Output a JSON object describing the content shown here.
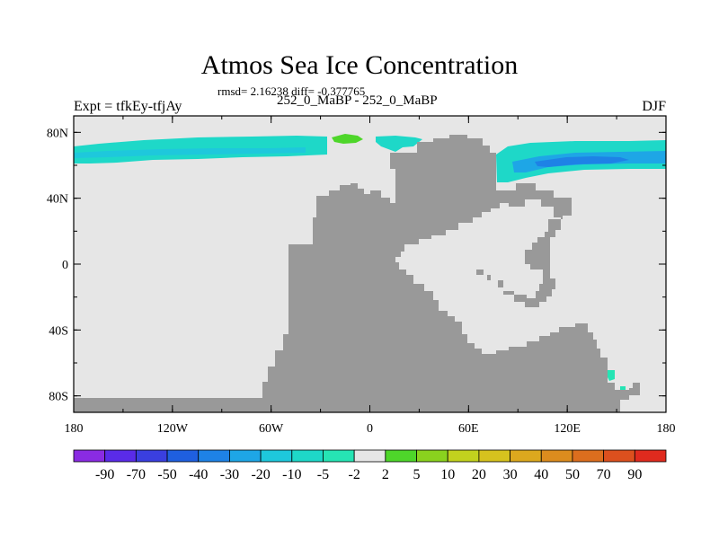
{
  "title": "Atmos Sea Ice Concentration",
  "stats": "rmsd= 2.16238 diff= -0.377765",
  "left_label": "Expt = tfkEy-tfjAy",
  "center_label": "252_0_MaBP - 252_0_MaBP",
  "right_label": "DJF",
  "map": {
    "ocean_color": "#e6e6e6",
    "land_color": "#999999",
    "lon_range": [
      -180,
      180
    ],
    "lat_range": [
      -90,
      90
    ],
    "lat_ticks": [
      {
        "value": 80,
        "label": "80N"
      },
      {
        "value": 40,
        "label": "40N"
      },
      {
        "value": 0,
        "label": "0"
      },
      {
        "value": -40,
        "label": "40S"
      },
      {
        "value": -80,
        "label": "80S"
      }
    ],
    "lon_ticks": [
      {
        "value": -180,
        "label": "180"
      },
      {
        "value": -120,
        "label": "120W"
      },
      {
        "value": -60,
        "label": "60W"
      },
      {
        "value": 0,
        "label": "0"
      },
      {
        "value": 60,
        "label": "60E"
      },
      {
        "value": 120,
        "label": "120E"
      },
      {
        "value": 180,
        "label": "180"
      }
    ]
  },
  "colorbar": {
    "colors": [
      "#8a2be2",
      "#5a2be8",
      "#3a3fe0",
      "#1f5fe0",
      "#1e82e6",
      "#1ea6e6",
      "#1ec8dc",
      "#1ed8c8",
      "#26e4b4",
      "#e6e6e6",
      "#4ed62a",
      "#8ad21e",
      "#c2d21e",
      "#d6c21e",
      "#dca81e",
      "#dc8c1e",
      "#dc6e1e",
      "#dc501e",
      "#e02a1e"
    ],
    "labels": [
      "-90",
      "-70",
      "-50",
      "-40",
      "-30",
      "-20",
      "-10",
      "-5",
      "-2",
      "2",
      "5",
      "10",
      "20",
      "30",
      "40",
      "50",
      "70",
      "90"
    ]
  }
}
